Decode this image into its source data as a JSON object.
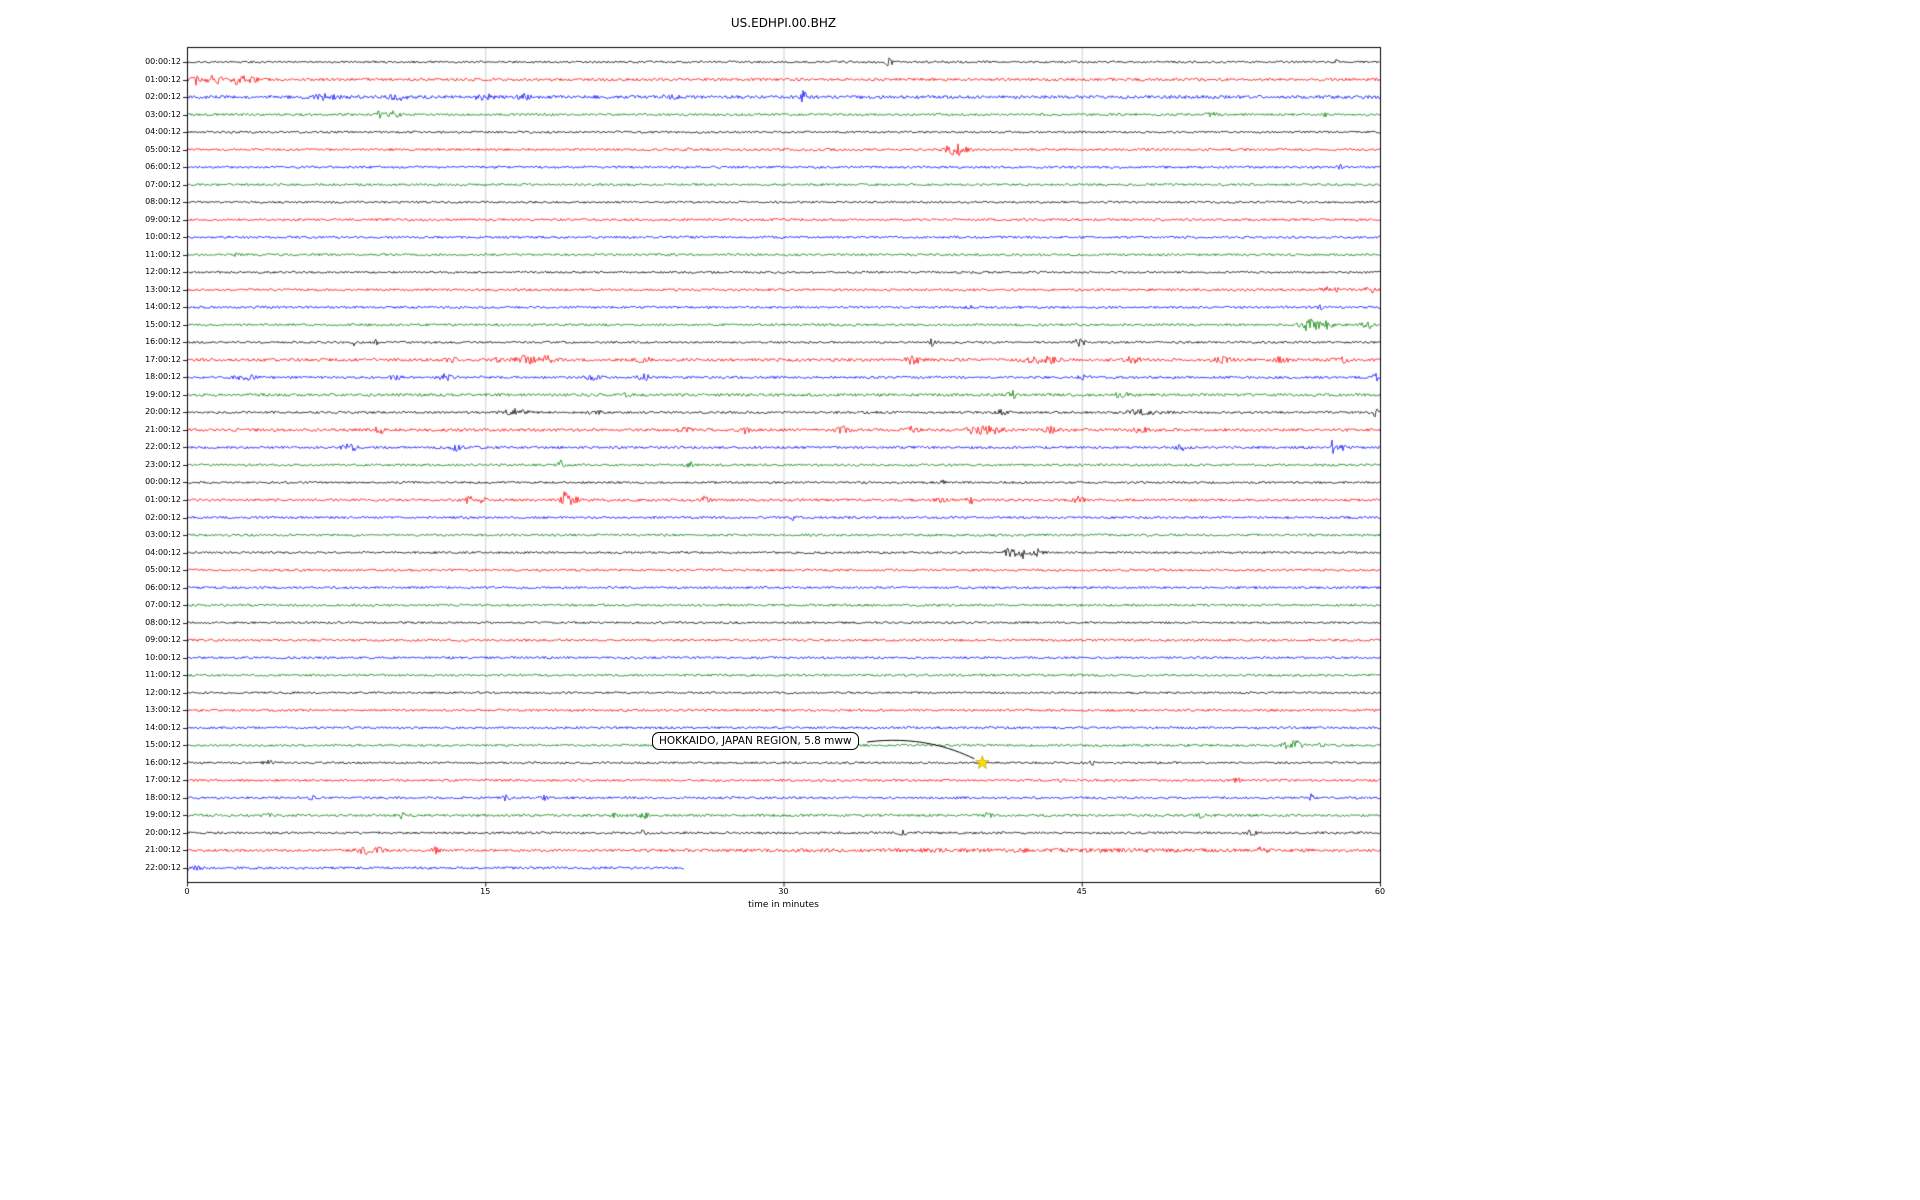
{
  "chart_data": {
    "type": "line",
    "variant": "helicorder-dayplot-seismogram",
    "title": "US.EDHPI.00.BHZ",
    "xlabel": "time in minutes",
    "xlim": [
      0,
      60
    ],
    "x_ticks": [
      0,
      15,
      30,
      45,
      60
    ],
    "grid": true,
    "palette": {
      "k": "#000000",
      "r": "#ff0000",
      "b": "#0000ff",
      "g": "#008000"
    },
    "annotation": {
      "text": "HOKKAIDO, JAPAN REGION, 5.8 mww",
      "row": 40,
      "row_label": "16:00:12",
      "minute": 40,
      "marker": "star",
      "marker_color": "#ffdf00"
    },
    "rows": [
      {
        "label": "00:00:12",
        "c": "k",
        "n": 1.1,
        "ev": [
          [
            35.3,
            5,
            0.15
          ],
          [
            57.8,
            1.8,
            0.1
          ]
        ],
        "end": 60
      },
      {
        "label": "01:00:12",
        "c": "r",
        "n": 1.4,
        "ev": [
          [
            0.4,
            4.5,
            0.3
          ],
          [
            1.4,
            4,
            0.4
          ],
          [
            2.6,
            5.5,
            0.3
          ],
          [
            3.3,
            3,
            0.2
          ]
        ],
        "end": 60
      },
      {
        "label": "02:00:12",
        "c": "b",
        "n": 1.6,
        "ev": [
          [
            7,
            2,
            0.8
          ],
          [
            10.6,
            2.5,
            0.4
          ],
          [
            15,
            3,
            0.5
          ],
          [
            16.9,
            2.5,
            0.3
          ],
          [
            24,
            1.5,
            0.6
          ],
          [
            31,
            5.5,
            0.12
          ]
        ],
        "end": 60
      },
      {
        "label": "03:00:12",
        "c": "g",
        "n": 1.2,
        "ev": [
          [
            9.8,
            4.5,
            0.3
          ],
          [
            10.4,
            3.5,
            0.3
          ],
          [
            51.5,
            2,
            0.3
          ],
          [
            57.2,
            1.8,
            0.2
          ]
        ],
        "end": 60
      },
      {
        "label": "04:00:12",
        "c": "k",
        "n": 1.1,
        "ev": [],
        "end": 60
      },
      {
        "label": "05:00:12",
        "c": "r",
        "n": 1.2,
        "ev": [
          [
            25.2,
            2.2,
            0.1
          ],
          [
            38.6,
            5.5,
            0.45
          ],
          [
            39.1,
            3.5,
            0.3
          ]
        ],
        "end": 60
      },
      {
        "label": "06:00:12",
        "c": "b",
        "n": 1.2,
        "ev": [
          [
            58,
            1.5,
            0.15
          ]
        ],
        "end": 60
      },
      {
        "label": "07:00:12",
        "c": "g",
        "n": 1.2,
        "ev": [],
        "end": 60
      },
      {
        "label": "08:00:12",
        "c": "k",
        "n": 1.1,
        "ev": [],
        "end": 60
      },
      {
        "label": "09:00:12",
        "c": "r",
        "n": 1.2,
        "ev": [],
        "end": 60
      },
      {
        "label": "10:00:12",
        "c": "b",
        "n": 1.2,
        "ev": [],
        "end": 60
      },
      {
        "label": "11:00:12",
        "c": "g",
        "n": 1.2,
        "ev": [
          [
            2.5,
            1.6,
            0.1
          ]
        ],
        "end": 60
      },
      {
        "label": "12:00:12",
        "c": "k",
        "n": 1.1,
        "ev": [],
        "end": 60
      },
      {
        "label": "13:00:12",
        "c": "r",
        "n": 1.2,
        "ev": [
          [
            57.5,
            2.8,
            0.4
          ],
          [
            59.5,
            2.8,
            0.3
          ]
        ],
        "end": 60
      },
      {
        "label": "14:00:12",
        "c": "b",
        "n": 1.2,
        "ev": [
          [
            39.3,
            2.2,
            0.15
          ],
          [
            57,
            2.2,
            0.1
          ]
        ],
        "end": 60
      },
      {
        "label": "15:00:12",
        "c": "g",
        "n": 1.2,
        "ev": [
          [
            56.5,
            6.5,
            0.45
          ],
          [
            57.4,
            3.5,
            0.25
          ],
          [
            59.4,
            3.2,
            0.3
          ]
        ],
        "end": 60
      },
      {
        "label": "16:00:12",
        "c": "k",
        "n": 1.1,
        "ev": [
          [
            8.4,
            2.8,
            0.15
          ],
          [
            9.5,
            2.8,
            0.15
          ],
          [
            37.5,
            3.5,
            0.2
          ],
          [
            44.9,
            4,
            0.25
          ]
        ],
        "end": 60
      },
      {
        "label": "17:00:12",
        "c": "r",
        "n": 1.5,
        "ev": [
          [
            13.4,
            2.8,
            0.3
          ],
          [
            15.7,
            2.8,
            0.2
          ],
          [
            17,
            3.8,
            0.5
          ],
          [
            18.1,
            3.2,
            0.4
          ],
          [
            23,
            2.8,
            0.3
          ],
          [
            36.5,
            4.5,
            0.3
          ],
          [
            43,
            3.5,
            0.8
          ],
          [
            47.5,
            2.8,
            0.4
          ],
          [
            52,
            2.4,
            0.5
          ],
          [
            55,
            2.4,
            0.4
          ],
          [
            58,
            2.4,
            0.4
          ]
        ],
        "end": 60
      },
      {
        "label": "18:00:12",
        "c": "b",
        "n": 1.3,
        "ev": [
          [
            3,
            2.2,
            0.5
          ],
          [
            10.5,
            1.8,
            0.3
          ],
          [
            13,
            3.2,
            0.3
          ],
          [
            20.5,
            2.2,
            0.4
          ],
          [
            23,
            2.8,
            0.3
          ],
          [
            45,
            2.2,
            0.3
          ],
          [
            59.8,
            3.2,
            0.2
          ]
        ],
        "end": 60
      },
      {
        "label": "19:00:12",
        "c": "g",
        "n": 1.5,
        "ev": [
          [
            22,
            2.8,
            0.15
          ],
          [
            41.5,
            4,
            0.2
          ],
          [
            47,
            2.8,
            0.3
          ]
        ],
        "end": 60
      },
      {
        "label": "20:00:12",
        "c": "k",
        "n": 1.2,
        "ev": [
          [
            16.5,
            3,
            0.6
          ],
          [
            20.5,
            2.2,
            0.3
          ],
          [
            41,
            3.2,
            0.25
          ],
          [
            48,
            2.2,
            1.0
          ],
          [
            59.8,
            4,
            0.15
          ]
        ],
        "end": 60
      },
      {
        "label": "21:00:12",
        "c": "r",
        "n": 1.5,
        "ev": [
          [
            9.7,
            2.8,
            0.3
          ],
          [
            25,
            2.8,
            0.3
          ],
          [
            28,
            3.2,
            0.3
          ],
          [
            33,
            2.8,
            0.3
          ],
          [
            36.5,
            3.2,
            0.3
          ],
          [
            39.7,
            4.5,
            0.4
          ],
          [
            40.6,
            5,
            0.4
          ],
          [
            43.5,
            3.2,
            0.3
          ],
          [
            48,
            2.8,
            0.3
          ]
        ],
        "end": 60
      },
      {
        "label": "22:00:12",
        "c": "b",
        "n": 1.3,
        "ev": [
          [
            8.2,
            2.8,
            0.4
          ],
          [
            13.5,
            2.8,
            0.3
          ],
          [
            50,
            2.8,
            0.3
          ],
          [
            57.6,
            6,
            0.15
          ],
          [
            58.1,
            2.8,
            0.2
          ]
        ],
        "end": 60
      },
      {
        "label": "23:00:12",
        "c": "g",
        "n": 1.2,
        "ev": [
          [
            18.8,
            6.5,
            0.12
          ],
          [
            25.3,
            3.2,
            0.15
          ]
        ],
        "end": 60
      },
      {
        "label": "00:00:12",
        "c": "k",
        "n": 1.1,
        "ev": [
          [
            38,
            2.8,
            0.12
          ]
        ],
        "end": 60
      },
      {
        "label": "01:00:12",
        "c": "r",
        "n": 1.3,
        "ev": [
          [
            14.2,
            4,
            0.2
          ],
          [
            14.9,
            3.5,
            0.15
          ],
          [
            19,
            8.5,
            0.18
          ],
          [
            19.4,
            4.5,
            0.3
          ],
          [
            26,
            4,
            0.25
          ],
          [
            38,
            3.2,
            0.3
          ],
          [
            39.5,
            3.2,
            0.25
          ],
          [
            44.8,
            3.2,
            0.3
          ]
        ],
        "end": 60
      },
      {
        "label": "02:00:12",
        "c": "b",
        "n": 1.2,
        "ev": [
          [
            30.5,
            3.2,
            0.12
          ]
        ],
        "end": 60
      },
      {
        "label": "03:00:12",
        "c": "g",
        "n": 1.2,
        "ev": [],
        "end": 60
      },
      {
        "label": "04:00:12",
        "c": "k",
        "n": 1.1,
        "ev": [
          [
            41.3,
            2.8,
            0.3
          ],
          [
            42,
            5.5,
            0.4
          ],
          [
            42.8,
            2.8,
            0.3
          ]
        ],
        "end": 60
      },
      {
        "label": "05:00:12",
        "c": "r",
        "n": 1.2,
        "ev": [],
        "end": 60
      },
      {
        "label": "06:00:12",
        "c": "b",
        "n": 1.2,
        "ev": [],
        "end": 60
      },
      {
        "label": "07:00:12",
        "c": "g",
        "n": 1.2,
        "ev": [],
        "end": 60
      },
      {
        "label": "08:00:12",
        "c": "k",
        "n": 1.1,
        "ev": [],
        "end": 60
      },
      {
        "label": "09:00:12",
        "c": "r",
        "n": 1.2,
        "ev": [],
        "end": 60
      },
      {
        "label": "10:00:12",
        "c": "b",
        "n": 1.2,
        "ev": [],
        "end": 60
      },
      {
        "label": "11:00:12",
        "c": "g",
        "n": 1.2,
        "ev": [],
        "end": 60
      },
      {
        "label": "12:00:12",
        "c": "k",
        "n": 1.1,
        "ev": [],
        "end": 60
      },
      {
        "label": "13:00:12",
        "c": "r",
        "n": 1.2,
        "ev": [],
        "end": 60
      },
      {
        "label": "14:00:12",
        "c": "b",
        "n": 1.2,
        "ev": [],
        "end": 60
      },
      {
        "label": "15:00:12",
        "c": "g",
        "n": 1.2,
        "ev": [
          [
            55.6,
            5.5,
            0.4
          ],
          [
            57,
            2.8,
            0.2
          ]
        ],
        "end": 60
      },
      {
        "label": "16:00:12",
        "c": "k",
        "n": 1.1,
        "ev": [
          [
            4.2,
            2.2,
            0.3
          ],
          [
            40,
            1.8,
            0.15
          ],
          [
            45.5,
            1.8,
            0.2
          ]
        ],
        "end": 60
      },
      {
        "label": "17:00:12",
        "c": "r",
        "n": 1.2,
        "ev": [
          [
            44,
            2.2,
            0.15
          ],
          [
            52.8,
            2.8,
            0.15
          ]
        ],
        "end": 60
      },
      {
        "label": "18:00:12",
        "c": "b",
        "n": 1.2,
        "ev": [
          [
            6.3,
            3.2,
            0.15
          ],
          [
            16,
            2.2,
            0.2
          ],
          [
            18,
            1.8,
            0.2
          ],
          [
            56.5,
            3.8,
            0.15
          ]
        ],
        "end": 60
      },
      {
        "label": "19:00:12",
        "c": "g",
        "n": 1.3,
        "ev": [
          [
            4,
            2.8,
            0.2
          ],
          [
            10.8,
            3.2,
            0.15
          ],
          [
            21.5,
            3.2,
            0.15
          ],
          [
            23,
            2.8,
            0.2
          ],
          [
            40.3,
            2.2,
            0.2
          ],
          [
            51,
            2.2,
            0.2
          ]
        ],
        "end": 60
      },
      {
        "label": "20:00:12",
        "c": "k",
        "n": 1.2,
        "ev": [
          [
            23,
            2.8,
            0.2
          ],
          [
            36,
            2.2,
            0.2
          ],
          [
            53.5,
            2.8,
            0.25
          ]
        ],
        "end": 60
      },
      {
        "label": "21:00:12",
        "c": "r",
        "n": 1.3,
        "ev": [
          [
            8.9,
            3.2,
            0.4
          ],
          [
            9.6,
            2.8,
            0.3
          ],
          [
            12.5,
            2.8,
            0.2
          ],
          [
            43,
            1,
            12
          ],
          [
            54,
            2.2,
            0.3
          ]
        ],
        "end": 60
      },
      {
        "label": "22:00:12",
        "c": "b",
        "n": 1.3,
        "ev": [
          [
            0.3,
            2.5,
            0.3
          ]
        ],
        "end": 25
      }
    ]
  }
}
